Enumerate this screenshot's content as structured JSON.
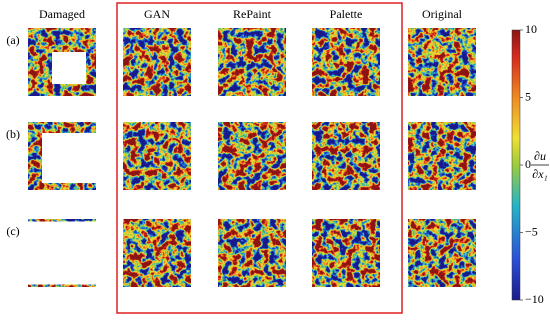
{
  "columns": [
    "Damaged",
    "GAN",
    "RePaint",
    "Palette",
    "Original"
  ],
  "rows": [
    "(a)",
    "(b)",
    "(c)"
  ],
  "colorbar": {
    "label_numerator": "∂u",
    "label_denominator": "∂x₁",
    "lim": [
      -10,
      10
    ],
    "ticks": [
      {
        "value": -10,
        "label": "−10"
      },
      {
        "value": -5,
        "label": "−5"
      },
      0,
      5,
      10
    ]
  }
}
